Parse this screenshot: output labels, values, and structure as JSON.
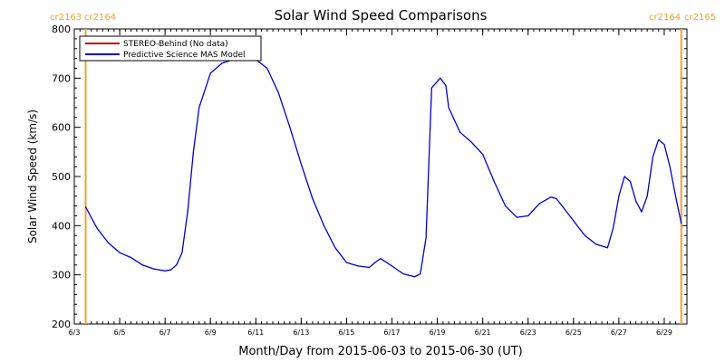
{
  "chart_data": {
    "type": "line",
    "title": "Solar Wind Speed Comparisons",
    "xlabel": "Month/Day from 2015-06-03 to 2015-06-30 (UT)",
    "ylabel": "Solar Wind Speed (km/s)",
    "xlim": [
      "2015-06-03",
      "2015-06-30"
    ],
    "ylim": [
      200,
      800
    ],
    "y_ticks": [
      200,
      300,
      400,
      500,
      600,
      700,
      800
    ],
    "x_ticks": [
      {
        "date": "2015-06-03",
        "label": "6/3"
      },
      {
        "date": "2015-06-05",
        "label": "6/5"
      },
      {
        "date": "2015-06-07",
        "label": "6/7"
      },
      {
        "date": "2015-06-09",
        "label": "6/9"
      },
      {
        "date": "2015-06-11",
        "label": "6/11"
      },
      {
        "date": "2015-06-13",
        "label": "6/13"
      },
      {
        "date": "2015-06-15",
        "label": "6/15"
      },
      {
        "date": "2015-06-17",
        "label": "6/17"
      },
      {
        "date": "2015-06-19",
        "label": "6/19"
      },
      {
        "date": "2015-06-21",
        "label": "6/21"
      },
      {
        "date": "2015-06-23",
        "label": "6/23"
      },
      {
        "date": "2015-06-25",
        "label": "6/25"
      },
      {
        "date": "2015-06-27",
        "label": "6/27"
      },
      {
        "date": "2015-06-29",
        "label": "6/29"
      }
    ],
    "grid": false,
    "legend_position": "top-left",
    "legend": [
      {
        "label": "STEREO-Behind (No data)",
        "color": "#c00000"
      },
      {
        "label": "Predictive Science MAS Model",
        "color": "#0000cc"
      }
    ],
    "carrington_markers": [
      {
        "date": "2015-06-03 12:00",
        "left_label": "cr2163",
        "right_label": "cr2164",
        "color": "#f0a030"
      },
      {
        "date": "2015-06-29 18:00",
        "left_label": "cr2164",
        "right_label": "cr2165",
        "color": "#f0a030"
      }
    ],
    "series": [
      {
        "name": "Predictive Science MAS Model",
        "color": "#0000cc",
        "x": [
          "2015-06-03 12:00",
          "2015-06-04 00:00",
          "2015-06-04 12:00",
          "2015-06-05 00:00",
          "2015-06-05 12:00",
          "2015-06-06 00:00",
          "2015-06-06 12:00",
          "2015-06-07 00:00",
          "2015-06-07 06:00",
          "2015-06-07 12:00",
          "2015-06-07 18:00",
          "2015-06-08 00:00",
          "2015-06-08 06:00",
          "2015-06-08 12:00",
          "2015-06-09 00:00",
          "2015-06-09 12:00",
          "2015-06-10 00:00",
          "2015-06-10 12:00",
          "2015-06-11 00:00",
          "2015-06-11 12:00",
          "2015-06-12 00:00",
          "2015-06-12 12:00",
          "2015-06-13 00:00",
          "2015-06-13 12:00",
          "2015-06-14 00:00",
          "2015-06-14 12:00",
          "2015-06-15 00:00",
          "2015-06-15 12:00",
          "2015-06-16 00:00",
          "2015-06-16 06:00",
          "2015-06-16 12:00",
          "2015-06-17 00:00",
          "2015-06-17 12:00",
          "2015-06-18 00:00",
          "2015-06-18 06:00",
          "2015-06-18 12:00",
          "2015-06-18 18:00",
          "2015-06-19 03:00",
          "2015-06-19 09:00",
          "2015-06-19 12:00",
          "2015-06-20 00:00",
          "2015-06-20 12:00",
          "2015-06-21 00:00",
          "2015-06-21 12:00",
          "2015-06-22 00:00",
          "2015-06-22 12:00",
          "2015-06-23 00:00",
          "2015-06-23 12:00",
          "2015-06-24 00:00",
          "2015-06-24 06:00",
          "2015-06-24 12:00",
          "2015-06-25 00:00",
          "2015-06-25 12:00",
          "2015-06-26 00:00",
          "2015-06-26 12:00",
          "2015-06-26 18:00",
          "2015-06-27 00:00",
          "2015-06-27 06:00",
          "2015-06-27 12:00",
          "2015-06-27 18:00",
          "2015-06-28 00:00",
          "2015-06-28 06:00",
          "2015-06-28 12:00",
          "2015-06-28 18:00",
          "2015-06-29 00:00",
          "2015-06-29 06:00",
          "2015-06-29 12:00",
          "2015-06-29 18:00"
        ],
        "values": [
          438,
          395,
          365,
          345,
          335,
          320,
          312,
          308,
          310,
          320,
          345,
          430,
          550,
          640,
          710,
          730,
          738,
          742,
          738,
          720,
          670,
          600,
          525,
          455,
          400,
          355,
          325,
          318,
          315,
          325,
          333,
          318,
          302,
          296,
          302,
          375,
          680,
          700,
          685,
          640,
          590,
          570,
          545,
          490,
          440,
          417,
          420,
          445,
          458,
          455,
          440,
          410,
          380,
          362,
          355,
          395,
          460,
          500,
          490,
          450,
          428,
          460,
          540,
          575,
          565,
          520,
          460,
          405
        ]
      }
    ]
  }
}
